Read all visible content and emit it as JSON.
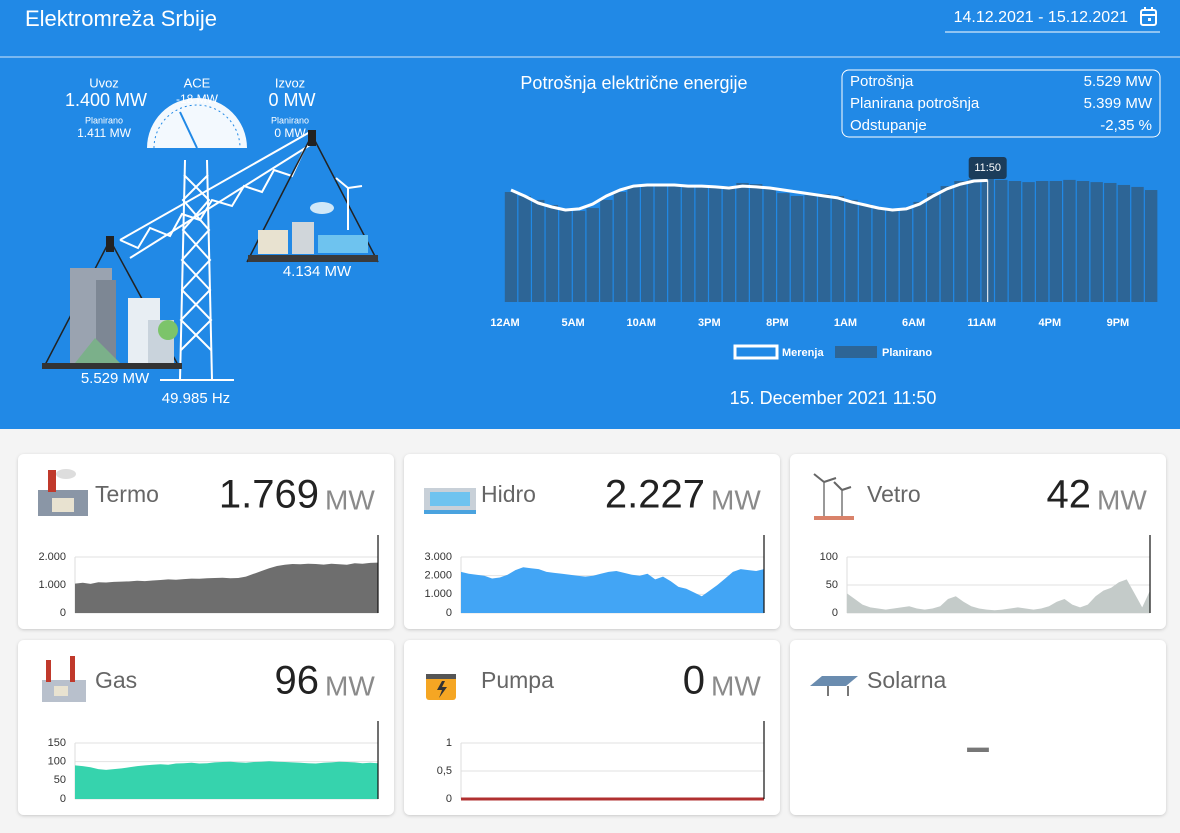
{
  "header": {
    "title": "Elektromreža Srbije",
    "date_range": "14.12.2021 - 15.12.2021"
  },
  "grid_panel": {
    "import_label": "Uvoz",
    "import_value": "1.400 MW",
    "import_planned_label": "Planirano",
    "import_planned_value": "1.411 MW",
    "ace_label": "ACE",
    "ace_value": "-18 MW",
    "export_label": "Izvoz",
    "export_value": "0 MW",
    "export_planned_label": "Planirano",
    "export_planned_value": "0 MW",
    "production": "4.134 MW",
    "consumption": "5.529 MW",
    "frequency": "49.985 Hz"
  },
  "info_box": {
    "rows": [
      [
        "Potrošnja",
        "5.529 MW"
      ],
      [
        "Planirana potrošnja",
        "5.399 MW"
      ],
      [
        "Odstupanje",
        "-2,35 %"
      ]
    ]
  },
  "chart_data": {
    "type": "bar",
    "title": "Potrošnja električne energije",
    "categories": [
      "12AM",
      null,
      null,
      null,
      null,
      "5AM",
      null,
      null,
      null,
      null,
      "10AM",
      null,
      null,
      null,
      null,
      "3PM",
      null,
      null,
      null,
      null,
      "8PM",
      null,
      null,
      null,
      null,
      "1AM",
      null,
      null,
      null,
      null,
      "6AM",
      null,
      null,
      null,
      null,
      "11AM",
      null,
      null,
      null,
      null,
      "4PM",
      null,
      null,
      null,
      null,
      "9PM",
      null,
      null
    ],
    "series": [
      {
        "name": "Planirano",
        "color": "#2d6596",
        "values": [
          5000,
          4820,
          4640,
          4410,
          4230,
          4140,
          4270,
          4640,
          5000,
          5230,
          5320,
          5360,
          5320,
          5270,
          5230,
          5230,
          5270,
          5410,
          5360,
          5180,
          4950,
          4820,
          4860,
          4910,
          4820,
          4640,
          4450,
          4270,
          4180,
          4230,
          4550,
          4950,
          5270,
          5500,
          5590,
          5640,
          5550,
          5500,
          5450,
          5500,
          5500,
          5550,
          5500,
          5450,
          5410,
          5320,
          5230,
          5090
        ]
      },
      {
        "name": "Merenja",
        "type": "line",
        "color": "#ffffff",
        "values": [
          5090,
          4820,
          4500,
          4320,
          4180,
          4230,
          4450,
          4820,
          5090,
          5270,
          5320,
          5320,
          5320,
          5270,
          5270,
          5230,
          5180,
          5270,
          5230,
          5180,
          5090,
          5000,
          4910,
          4820,
          4730,
          4550,
          4410,
          4270,
          4180,
          4230,
          4450,
          4820,
          5140,
          5360,
          5500,
          5529,
          null,
          null,
          null,
          null,
          null,
          null,
          null,
          null,
          null,
          null,
          null,
          null
        ]
      }
    ],
    "ylim": [
      0,
      6000
    ],
    "cursor_label": "11:50",
    "timestamp": "15. December 2021 11:50"
  },
  "cards": [
    {
      "name": "Termo",
      "value": "1.769",
      "unit": "MW",
      "chart": {
        "type": "area",
        "color": "#6e6e6e",
        "ylim": [
          0,
          2000
        ],
        "yticks": [
          0,
          {
            "value": 1000,
            "label": "1.000"
          },
          {
            "value": 2000,
            "label": "2.000"
          }
        ],
        "values": [
          1050,
          1080,
          1040,
          1100,
          1090,
          1110,
          1120,
          1130,
          1150,
          1140,
          1160,
          1180,
          1200,
          1190,
          1210,
          1230,
          1220,
          1240,
          1250,
          1260,
          1240,
          1250,
          1300,
          1400,
          1500,
          1600,
          1680,
          1720,
          1750,
          1740,
          1760,
          1750,
          1730,
          1760,
          1740,
          1720,
          1780,
          1760,
          1790,
          1800
        ]
      }
    },
    {
      "name": "Hidro",
      "value": "2.227",
      "unit": "MW",
      "chart": {
        "type": "area",
        "color": "#42a5f5",
        "ylim": [
          0,
          3000
        ],
        "yticks": [
          0,
          {
            "value": 1000,
            "label": "1.000"
          },
          {
            "value": 2000,
            "label": "2.000"
          },
          {
            "value": 3000,
            "label": "3.000"
          }
        ],
        "values": [
          2200,
          2100,
          2050,
          2000,
          1850,
          1900,
          2050,
          2300,
          2450,
          2400,
          2350,
          2200,
          2150,
          2100,
          2050,
          2000,
          1950,
          2000,
          2100,
          2200,
          2250,
          2150,
          2050,
          2000,
          2100,
          1800,
          1950,
          1700,
          1400,
          1300,
          1100,
          900,
          1200,
          1500,
          1850,
          2200,
          2350,
          2300,
          2250,
          2350
        ]
      }
    },
    {
      "name": "Vetro",
      "value": "42",
      "unit": "MW",
      "chart": {
        "type": "area",
        "color": "#c4cbc9",
        "ylim": [
          0,
          100
        ],
        "yticks": [
          0,
          50,
          100
        ],
        "values": [
          35,
          25,
          15,
          10,
          8,
          6,
          8,
          10,
          12,
          8,
          6,
          8,
          12,
          25,
          30,
          20,
          12,
          8,
          6,
          5,
          6,
          8,
          10,
          8,
          6,
          8,
          12,
          20,
          25,
          15,
          10,
          15,
          30,
          40,
          45,
          55,
          60,
          35,
          10,
          40
        ]
      }
    },
    {
      "name": "Gas",
      "value": "96",
      "unit": "MW",
      "chart": {
        "type": "area",
        "color": "#36d3ad",
        "ylim": [
          0,
          150
        ],
        "yticks": [
          0,
          50,
          100,
          150
        ],
        "values": [
          90,
          88,
          85,
          80,
          78,
          80,
          82,
          85,
          88,
          90,
          92,
          93,
          92,
          95,
          96,
          97,
          95,
          96,
          98,
          99,
          100,
          98,
          97,
          99,
          100,
          101,
          100,
          99,
          98,
          97,
          96,
          95,
          97,
          98,
          100,
          99,
          98,
          96,
          97,
          96
        ]
      }
    },
    {
      "name": "Pumpa",
      "value": "0",
      "unit": "MW",
      "chart": {
        "type": "line",
        "color": "#b03030",
        "ylim": [
          0,
          1
        ],
        "yticks": [
          0,
          {
            "value": 0.5,
            "label": "0,5"
          },
          1
        ],
        "values": [
          0,
          0,
          0,
          0,
          0,
          0,
          0,
          0,
          0,
          0,
          0,
          0,
          0,
          0,
          0,
          0,
          0,
          0,
          0,
          0,
          0,
          0,
          0,
          0,
          0,
          0,
          0,
          0,
          0,
          0,
          0,
          0,
          0,
          0,
          0,
          0,
          0,
          0,
          0,
          0
        ]
      }
    },
    {
      "name": "Solarna",
      "value": "–"
    }
  ]
}
